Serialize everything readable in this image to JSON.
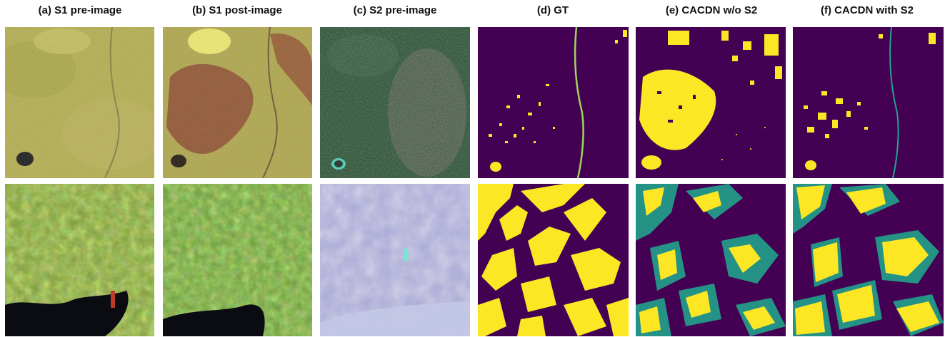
{
  "figure": {
    "columns": [
      {
        "title": "(a) S1 pre-image"
      },
      {
        "title": "(b) S1 post-image"
      },
      {
        "title": "(c) S2 pre-image"
      },
      {
        "title": "(d) GT"
      },
      {
        "title": "(e) CACDN w/o S2"
      },
      {
        "title": "(f) CACDN with S2"
      }
    ]
  },
  "colors": {
    "mask_background": "#440154",
    "mask_foreground": "#fde725",
    "mask_mid": "#21a38c",
    "sar_yellow": "#b8b24a",
    "sar_green": "#6c9a3a",
    "sar_red": "#8a3a22",
    "optical_forest": "#1f4a2a",
    "optical_mountain": "#a9a8d6",
    "water": "#0b0b12"
  }
}
